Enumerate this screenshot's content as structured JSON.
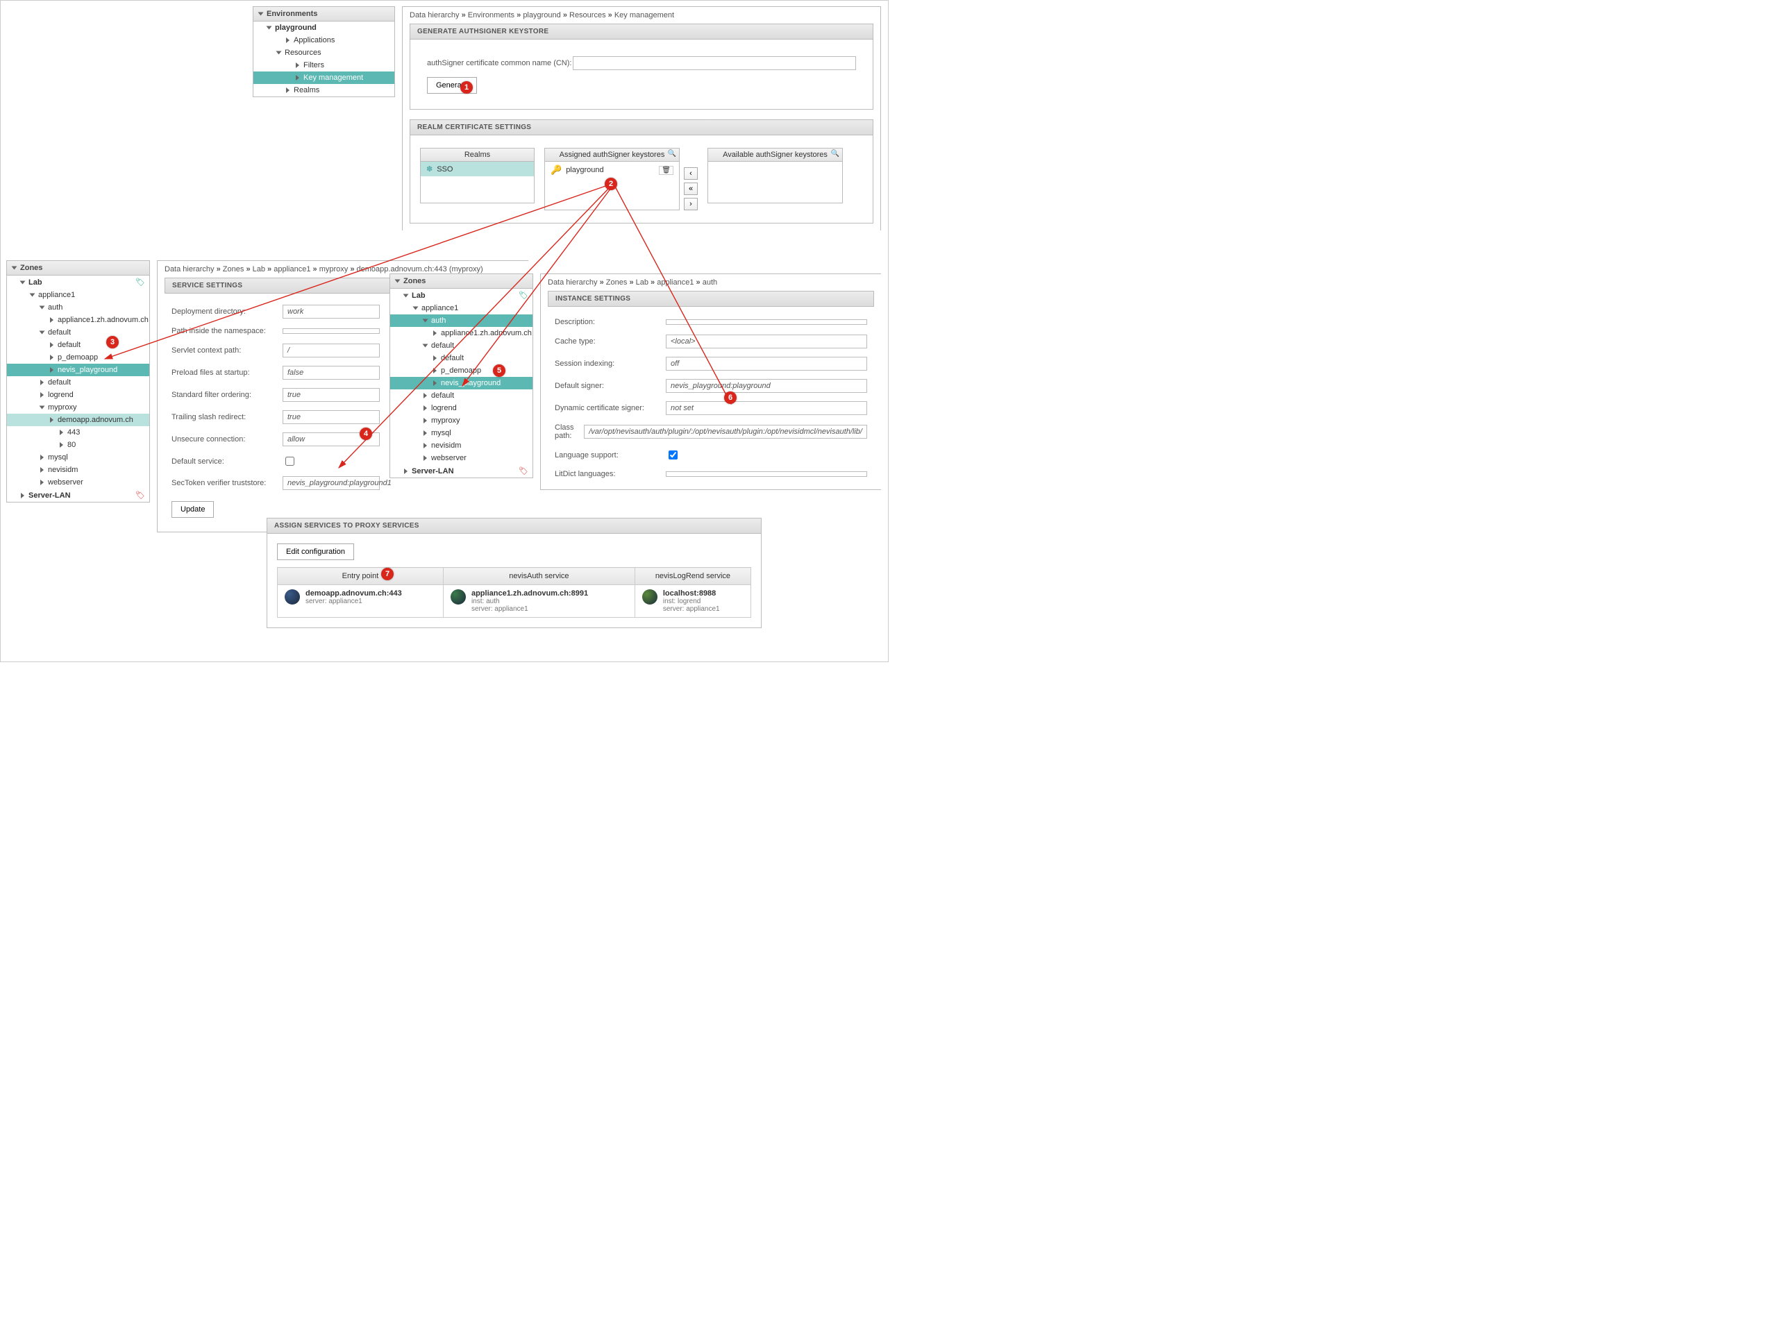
{
  "colors": {
    "accent": "#5cb8b2",
    "badge": "#d9261c",
    "arrow": "#d9261c"
  },
  "env_tree": {
    "title": "Environments",
    "root": "playground",
    "items": [
      {
        "label": "Applications",
        "indent": 2
      },
      {
        "label": "Resources",
        "indent": 2,
        "open": true
      },
      {
        "label": "Filters",
        "indent": 3
      },
      {
        "label": "Key management",
        "indent": 3,
        "sel": true
      },
      {
        "label": "Realms",
        "indent": 2
      }
    ]
  },
  "top_breadcrumb": [
    "Data hierarchy",
    "Environments",
    "playground",
    "Resources",
    "Key management"
  ],
  "gen_keystore": {
    "head": "GENERATE AUTHSIGNER KEYSTORE",
    "label": "authSigner certificate common name (CN):",
    "button": "Generate"
  },
  "realm_settings": {
    "head": "REALM CERTIFICATE SETTINGS",
    "realms_head": "Realms",
    "realms_item": "SSO",
    "assigned_head": "Assigned authSigner keystores",
    "assigned_item": "playground",
    "available_head": "Available authSigner keystores"
  },
  "zones_left": {
    "title": "Zones",
    "items": [
      {
        "label": "Lab",
        "indent": 1,
        "bold": true,
        "open": true,
        "tag": "green"
      },
      {
        "label": "appliance1",
        "indent": 2,
        "open": true
      },
      {
        "label": "auth",
        "indent": 3,
        "open": true
      },
      {
        "label": "appliance1.zh.adnovum.ch",
        "indent": 4
      },
      {
        "label": "default",
        "indent": 3,
        "open": true
      },
      {
        "label": "default",
        "indent": 4
      },
      {
        "label": "p_demoapp",
        "indent": 4
      },
      {
        "label": "nevis_playground",
        "indent": 4,
        "sel": true
      },
      {
        "label": "default",
        "indent": 3
      },
      {
        "label": "logrend",
        "indent": 3
      },
      {
        "label": "myproxy",
        "indent": 3,
        "open": true
      },
      {
        "label": "demoapp.adnovum.ch",
        "indent": 4,
        "sel2": true
      },
      {
        "label": "443",
        "indent": 5
      },
      {
        "label": "80",
        "indent": 5
      },
      {
        "label": "mysql",
        "indent": 3
      },
      {
        "label": "nevisidm",
        "indent": 3
      },
      {
        "label": "webserver",
        "indent": 3
      },
      {
        "label": "Server-LAN",
        "indent": 1,
        "bold": true,
        "tag": "red"
      }
    ]
  },
  "zones_mid": {
    "title": "Zones",
    "items": [
      {
        "label": "Lab",
        "indent": 1,
        "bold": true,
        "open": true,
        "tag": "green"
      },
      {
        "label": "appliance1",
        "indent": 2,
        "open": true
      },
      {
        "label": "auth",
        "indent": 3,
        "sel": true,
        "open": true
      },
      {
        "label": "appliance1.zh.adnovum.ch",
        "indent": 4
      },
      {
        "label": "default",
        "indent": 3,
        "open": true
      },
      {
        "label": "default",
        "indent": 4
      },
      {
        "label": "p_demoapp",
        "indent": 4
      },
      {
        "label": "nevis_playground",
        "indent": 4,
        "sel": true
      },
      {
        "label": "default",
        "indent": 3
      },
      {
        "label": "logrend",
        "indent": 3
      },
      {
        "label": "myproxy",
        "indent": 3
      },
      {
        "label": "mysql",
        "indent": 3
      },
      {
        "label": "nevisidm",
        "indent": 3
      },
      {
        "label": "webserver",
        "indent": 3
      },
      {
        "label": "Server-LAN",
        "indent": 1,
        "bold": true,
        "tag": "red"
      }
    ]
  },
  "svc_crumb": [
    "Data hierarchy",
    "Zones",
    "Lab",
    "appliance1",
    "myproxy",
    "demoapp.adnovum.ch:443 (myproxy)"
  ],
  "svc": {
    "head": "SERVICE SETTINGS",
    "rows": [
      {
        "label": "Deployment directory:",
        "val": "work"
      },
      {
        "label": "Path inside the namespace:",
        "val": ""
      },
      {
        "label": "Servlet context path:",
        "val": "/"
      },
      {
        "label": "Preload files at startup:",
        "val": "false"
      },
      {
        "label": "Standard filter ordering:",
        "val": "true"
      },
      {
        "label": "Trailing slash redirect:",
        "val": "true"
      },
      {
        "label": "Unsecure connection:",
        "val": "allow"
      },
      {
        "label": "Default service:",
        "val": "",
        "checkbox": true
      },
      {
        "label": "SecToken verifier truststore:",
        "val": "nevis_playground:playground1"
      }
    ],
    "update": "Update"
  },
  "inst_crumb": [
    "Data hierarchy",
    "Zones",
    "Lab",
    "appliance1",
    "auth"
  ],
  "inst": {
    "head": "INSTANCE SETTINGS",
    "rows": [
      {
        "label": "Description:",
        "val": ""
      },
      {
        "label": "Cache type:",
        "val": "<local>"
      },
      {
        "label": "Session indexing:",
        "val": "off"
      },
      {
        "label": "Default signer:",
        "val": "nevis_playground:playground"
      },
      {
        "label": "Dynamic certificate signer:",
        "val": "not set"
      },
      {
        "label": "Class path:",
        "val": "/var/opt/nevisauth/auth/plugin/:/opt/nevisauth/plugin:/opt/nevisidmcl/nevisauth/lib/"
      },
      {
        "label": "Language support:",
        "val": "",
        "checkbox": true,
        "checked": true
      },
      {
        "label": "LitDict languages:",
        "val": ""
      }
    ]
  },
  "assign": {
    "head": "ASSIGN SERVICES TO PROXY SERVICES",
    "edit": "Edit configuration",
    "cols": [
      "Entry point",
      "nevisAuth service",
      "nevisLogRend service"
    ],
    "row": [
      {
        "top": "demoapp.adnovum.ch:443",
        "sub": "server: appliance1",
        "color": "#3a5a8a"
      },
      {
        "top": "appliance1.zh.adnovum.ch:8991",
        "mid": "inst: auth",
        "sub": "server: appliance1",
        "color": "#3a7a4a"
      },
      {
        "top": "localhost:8988",
        "mid": "inst: logrend",
        "sub": "server: appliance1",
        "color": "#5a8a3a"
      }
    ]
  },
  "badges": {
    "1": "1",
    "2": "2",
    "3": "3",
    "4": "4",
    "5": "5",
    "6": "6",
    "7": "7"
  }
}
